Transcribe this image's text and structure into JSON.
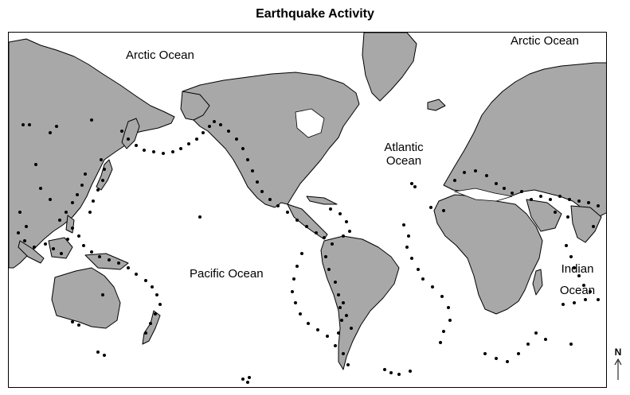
{
  "title": "Earthquake Activity",
  "labels": {
    "arctic_left": "Arctic Ocean",
    "arctic_right": "Arctic Ocean",
    "atlantic_line1": "Atlantic",
    "atlantic_line2": "Ocean",
    "pacific": "Pacific Ocean",
    "indian_line1": "Indian",
    "indian_line2": "Ocean"
  },
  "compass": {
    "letter": "N"
  },
  "colors": {
    "land": "#a8a8a8",
    "outline": "#000000",
    "dot": "#000000",
    "water": "#ffffff"
  }
}
